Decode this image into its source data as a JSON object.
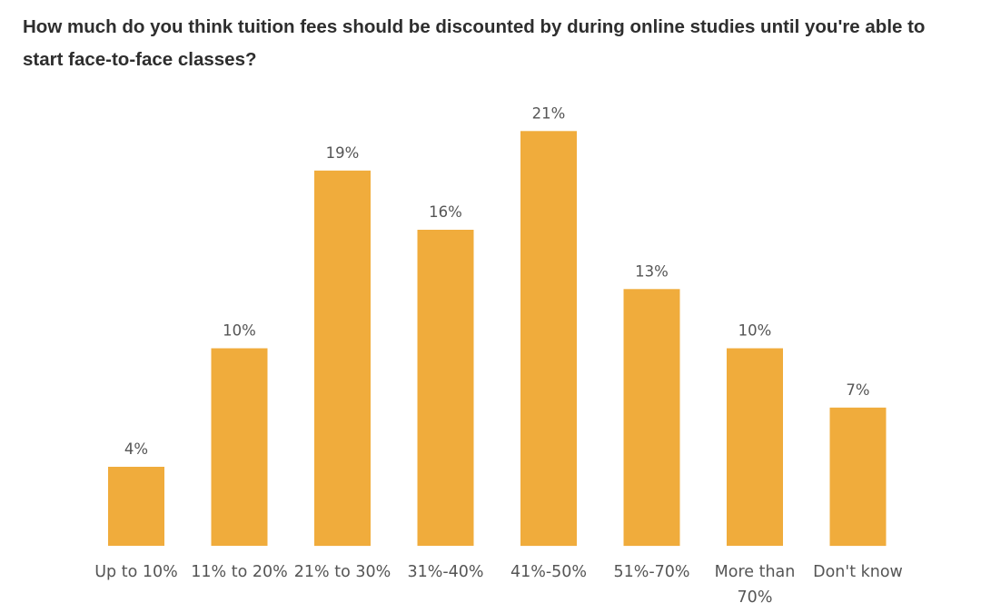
{
  "chart_data": {
    "type": "bar",
    "title": "How much do you think tuition fees should be discounted by during online studies until you're able to start face-to-face classes?",
    "categories": [
      "Up to 10%",
      "11% to 20%",
      "21% to 30%",
      "31%-40%",
      "41%-50%",
      "51%-70%",
      "More than 70%",
      "Don't know"
    ],
    "category_lines": [
      [
        "Up to 10%"
      ],
      [
        "11% to 20%"
      ],
      [
        "21% to 30%"
      ],
      [
        "31%-40%"
      ],
      [
        "41%-50%"
      ],
      [
        "51%-70%"
      ],
      [
        "More than",
        "70%"
      ],
      [
        "Don't know"
      ]
    ],
    "values": [
      4,
      10,
      19,
      16,
      21,
      13,
      10,
      7
    ],
    "data_labels": [
      "4%",
      "10%",
      "19%",
      "16%",
      "21%",
      "13%",
      "10%",
      "7%"
    ],
    "unit": "%",
    "xlabel": "",
    "ylabel": "",
    "grid": false,
    "legend": "none",
    "colors": {
      "bar": "#F0AC3C",
      "text": "#555555",
      "title": "#2e2e2e"
    }
  }
}
